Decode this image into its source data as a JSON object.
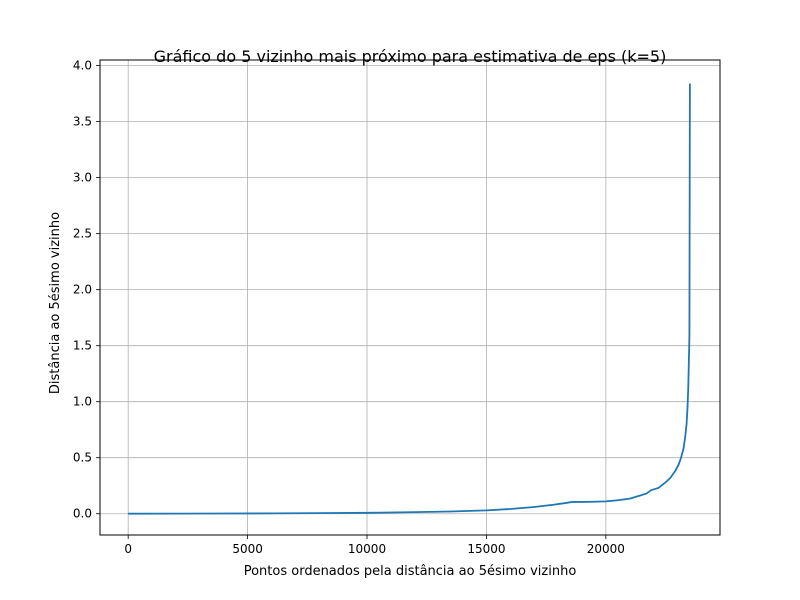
{
  "chart_data": {
    "type": "line",
    "title": "Gráfico do 5 vizinho mais próximo para estimativa de eps (k=5)",
    "xlabel": "Pontos ordenados pela distância ao 5ésimo vizinho",
    "ylabel": "Distância ao 5ésimo vizinho",
    "xlim": [
      -1180,
      24780
    ],
    "ylim": [
      -0.19,
      4.05
    ],
    "xticks": [
      0,
      5000,
      10000,
      15000,
      20000
    ],
    "xtick_labels": [
      "0",
      "5000",
      "10000",
      "15000",
      "20000"
    ],
    "yticks": [
      0.0,
      0.5,
      1.0,
      1.5,
      2.0,
      2.5,
      3.0,
      3.5,
      4.0
    ],
    "ytick_labels": [
      "0.0",
      "0.5",
      "1.0",
      "1.5",
      "2.0",
      "2.5",
      "3.0",
      "3.5",
      "4.0"
    ],
    "grid": true,
    "color": "#1f77b4",
    "series": [
      {
        "x": [
          0,
          2000,
          4000,
          6000,
          8000,
          10000,
          12000,
          13500,
          15000,
          16000,
          17000,
          17800,
          18300,
          18600,
          19000,
          19500,
          20000,
          20500,
          21000,
          21400,
          21700,
          21900,
          22200,
          22500,
          22700,
          22900,
          23050,
          23150,
          23250,
          23320,
          23380,
          23420,
          23450,
          23470,
          23480,
          23490,
          23500,
          23505,
          23510,
          23515,
          23520
        ],
        "y": [
          0.0,
          0.001,
          0.002,
          0.003,
          0.005,
          0.008,
          0.014,
          0.02,
          0.03,
          0.042,
          0.06,
          0.08,
          0.095,
          0.105,
          0.105,
          0.107,
          0.11,
          0.12,
          0.135,
          0.16,
          0.18,
          0.21,
          0.23,
          0.28,
          0.32,
          0.38,
          0.44,
          0.5,
          0.58,
          0.68,
          0.8,
          0.95,
          1.12,
          1.3,
          1.4,
          1.48,
          1.6,
          2.2,
          2.8,
          3.4,
          3.84
        ]
      }
    ]
  }
}
